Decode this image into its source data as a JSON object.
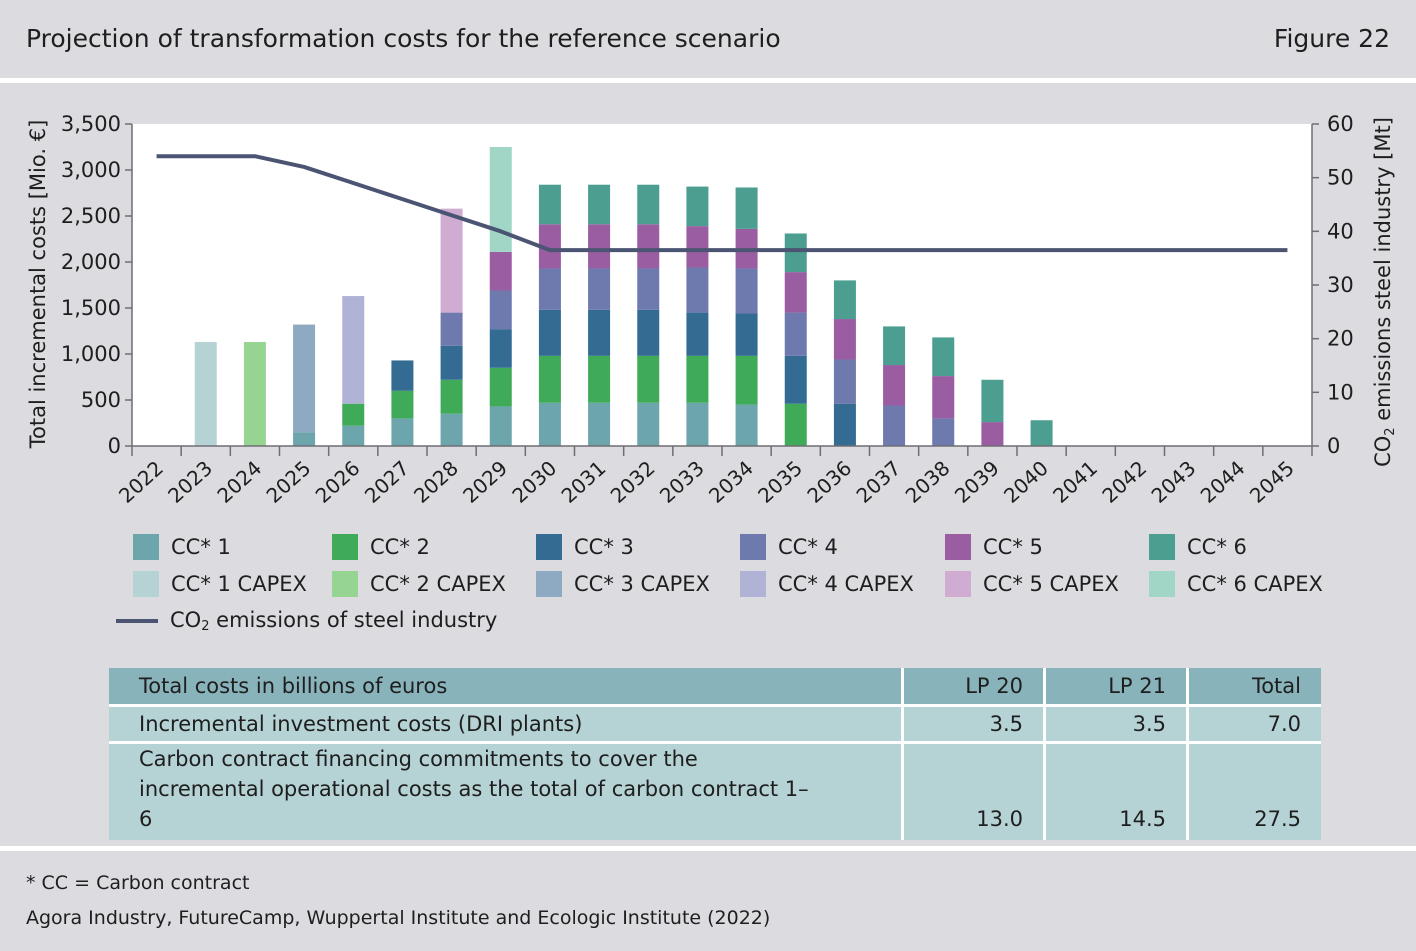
{
  "header": {
    "title": "Projection of transformation costs for the reference scenario",
    "figure": "Figure 22"
  },
  "chart_data": {
    "type": "bar",
    "stacked": true,
    "categories": [
      "2022",
      "2023",
      "2024",
      "2025",
      "2026",
      "2027",
      "2028",
      "2029",
      "2030",
      "2031",
      "2032",
      "2033",
      "2034",
      "2035",
      "2036",
      "2037",
      "2038",
      "2039",
      "2040",
      "2041",
      "2042",
      "2043",
      "2044",
      "2045"
    ],
    "ylabel": "Total  incremental costs [Mio. €]",
    "ylim": [
      0,
      3500
    ],
    "yticks": [
      0,
      500,
      1000,
      1500,
      2000,
      2500,
      3000,
      3500
    ],
    "ytick_labels": [
      "0",
      "500",
      "1,000",
      "1,500",
      "2,000",
      "2,500",
      "3,000",
      "3,500"
    ],
    "y2label_pre": "CO",
    "y2label_sub": "2",
    "y2label_post": " emissions steel industry [Mt]",
    "y2lim": [
      0,
      60
    ],
    "y2ticks": [
      0,
      10,
      20,
      30,
      40,
      50,
      60
    ],
    "grid": false,
    "series": [
      {
        "name": "CC* 1",
        "color": "#6da5ad",
        "values": [
          0,
          0,
          0,
          150,
          220,
          300,
          350,
          430,
          470,
          470,
          470,
          470,
          450,
          0,
          0,
          0,
          0,
          0,
          0,
          0,
          0,
          0,
          0,
          0
        ]
      },
      {
        "name": "CC* 1 CAPEX",
        "color": "#b5d2d4",
        "values": [
          0,
          1130,
          0,
          0,
          0,
          0,
          0,
          0,
          0,
          0,
          0,
          0,
          0,
          0,
          0,
          0,
          0,
          0,
          0,
          0,
          0,
          0,
          0,
          0
        ]
      },
      {
        "name": "CC* 2",
        "color": "#3fab59",
        "values": [
          0,
          0,
          0,
          0,
          240,
          300,
          370,
          420,
          510,
          510,
          510,
          510,
          530,
          460,
          0,
          0,
          0,
          0,
          0,
          0,
          0,
          0,
          0,
          0
        ]
      },
      {
        "name": "CC* 2 CAPEX",
        "color": "#96d491",
        "values": [
          0,
          0,
          1130,
          0,
          0,
          0,
          0,
          0,
          0,
          0,
          0,
          0,
          0,
          0,
          0,
          0,
          0,
          0,
          0,
          0,
          0,
          0,
          0,
          0
        ]
      },
      {
        "name": "CC* 3",
        "color": "#336b92",
        "values": [
          0,
          0,
          0,
          0,
          0,
          330,
          370,
          420,
          500,
          500,
          500,
          470,
          460,
          520,
          460,
          0,
          0,
          0,
          0,
          0,
          0,
          0,
          0,
          0
        ]
      },
      {
        "name": "CC* 3 CAPEX",
        "color": "#8daac2",
        "values": [
          0,
          0,
          0,
          1170,
          0,
          0,
          0,
          0,
          0,
          0,
          0,
          0,
          0,
          0,
          0,
          0,
          0,
          0,
          0,
          0,
          0,
          0,
          0,
          0
        ]
      },
      {
        "name": "CC* 4",
        "color": "#6e79ad",
        "values": [
          0,
          0,
          0,
          0,
          0,
          0,
          360,
          420,
          450,
          450,
          450,
          490,
          490,
          470,
          480,
          440,
          300,
          0,
          0,
          0,
          0,
          0,
          0,
          0
        ]
      },
      {
        "name": "CC* 4 CAPEX",
        "color": "#b1b3d6",
        "values": [
          0,
          0,
          0,
          0,
          1170,
          0,
          0,
          0,
          0,
          0,
          0,
          0,
          0,
          0,
          0,
          0,
          0,
          0,
          0,
          0,
          0,
          0,
          0,
          0
        ]
      },
      {
        "name": "CC* 5",
        "color": "#9a5da2",
        "values": [
          0,
          0,
          0,
          0,
          0,
          0,
          0,
          420,
          480,
          480,
          480,
          450,
          430,
          440,
          440,
          440,
          460,
          260,
          0,
          0,
          0,
          0,
          0,
          0
        ]
      },
      {
        "name": "CC* 5 CAPEX",
        "color": "#d0acd2",
        "values": [
          0,
          0,
          0,
          0,
          0,
          0,
          1130,
          0,
          0,
          0,
          0,
          0,
          0,
          0,
          0,
          0,
          0,
          0,
          0,
          0,
          0,
          0,
          0,
          0
        ]
      },
      {
        "name": "CC* 6",
        "color": "#4c9f90",
        "values": [
          0,
          0,
          0,
          0,
          0,
          0,
          0,
          0,
          430,
          430,
          430,
          430,
          450,
          420,
          420,
          420,
          420,
          460,
          280,
          0,
          0,
          0,
          0,
          0
        ]
      },
      {
        "name": "CC* 6 CAPEX",
        "color": "#a1d6c6",
        "values": [
          0,
          0,
          0,
          0,
          0,
          0,
          0,
          1140,
          0,
          0,
          0,
          0,
          0,
          0,
          0,
          0,
          0,
          0,
          0,
          0,
          0,
          0,
          0,
          0
        ]
      }
    ],
    "line": {
      "name_pre": "CO",
      "name_sub": "2",
      "name_post": " emissions of steel industry",
      "color": "#4b5472",
      "axis": "right",
      "x": [
        "2022",
        "2024",
        "2025",
        "2026",
        "2027",
        "2028",
        "2029",
        "2030",
        "2045"
      ],
      "values": [
        54,
        54,
        52,
        49,
        46,
        43,
        40,
        36.5,
        36.5
      ]
    }
  },
  "legend_rows": [
    [
      "CC* 1",
      "CC* 2",
      "CC* 3",
      "CC* 4",
      "CC* 5",
      "CC* 6"
    ],
    [
      "CC* 1 CAPEX",
      "CC* 2 CAPEX",
      "CC* 3 CAPEX",
      "CC* 4 CAPEX",
      "CC* 5 CAPEX",
      "CC* 6 CAPEX"
    ]
  ],
  "table": {
    "headers": [
      "Total costs in billions of euros",
      "LP 20",
      "LP 21",
      "Total"
    ],
    "rows": [
      [
        "Incremental investment costs (DRI plants)",
        "3.5",
        "3.5",
        "7.0"
      ],
      [
        "Carbon contract financing commitments to cover the incremental operational costs as the total of carbon contract 1–6",
        "13.0",
        "14.5",
        "27.5"
      ]
    ]
  },
  "footnote": "* CC = Carbon contract",
  "source": "Agora Industry, FutureCamp, Wuppertal Institute and Ecologic Institute (2022)"
}
